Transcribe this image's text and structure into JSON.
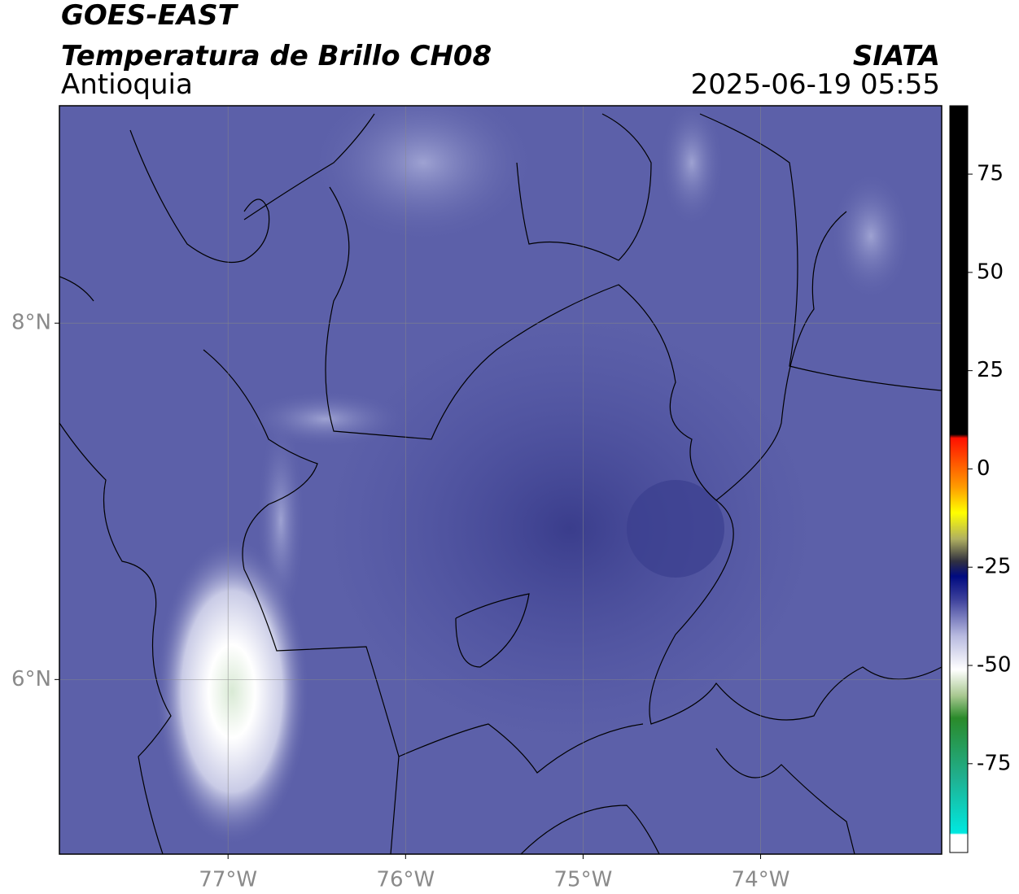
{
  "header": {
    "title": "GOES-EAST",
    "subtitle": "Temperatura de Brillo CH08",
    "region": "Antioquia",
    "source": "SIATA",
    "datetime": "2025-06-19 05:55"
  },
  "map": {
    "xlim": [
      -77.95,
      -72.98
    ],
    "ylim": [
      5.02,
      9.22
    ],
    "grid": true,
    "xticks": [
      {
        "value": -77,
        "label": "77°W"
      },
      {
        "value": -76,
        "label": "76°W"
      },
      {
        "value": -75,
        "label": "75°W"
      },
      {
        "value": -74,
        "label": "74°W"
      }
    ],
    "yticks": [
      {
        "value": 8,
        "label": "8°N"
      },
      {
        "value": 6,
        "label": "6°N"
      }
    ]
  },
  "colorbar": {
    "lim": [
      -97.6,
      92.4
    ],
    "ticks": [
      75,
      50,
      25,
      0,
      -25,
      -50,
      -75
    ]
  }
}
